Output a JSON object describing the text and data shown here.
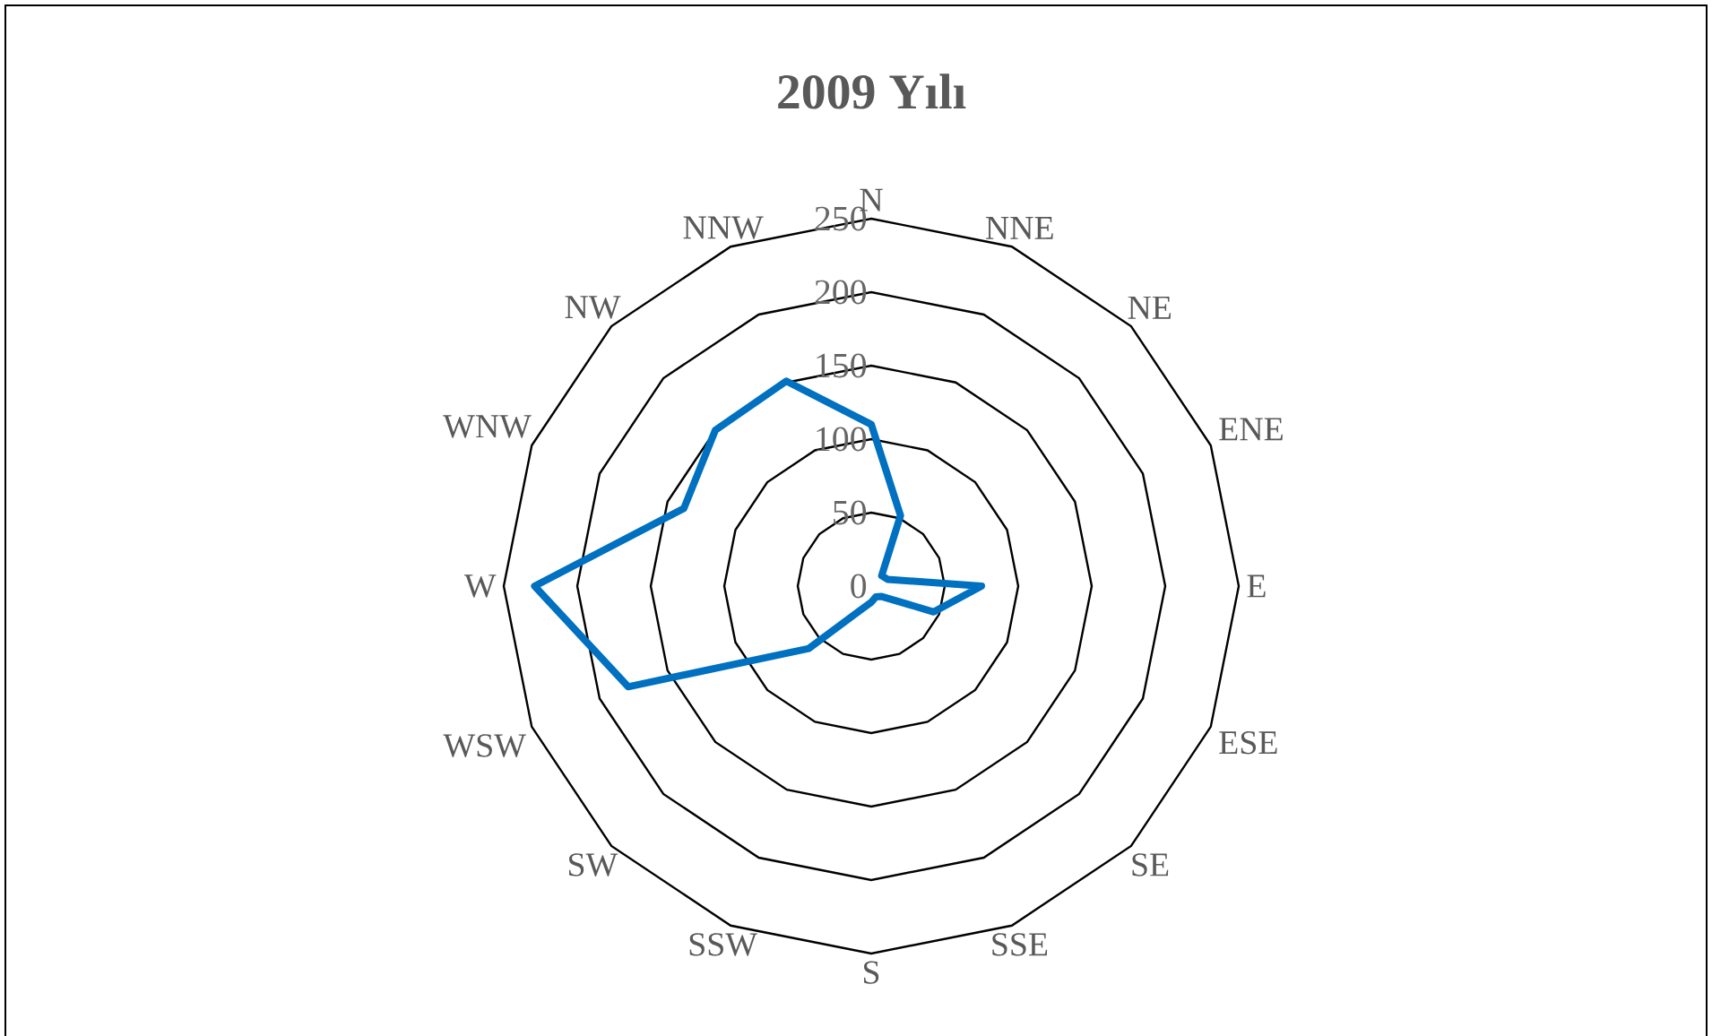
{
  "chart_data": {
    "type": "radar",
    "title": "2009 Yılı",
    "categories": [
      "N",
      "NNE",
      "NE",
      "ENE",
      "E",
      "ESE",
      "SE",
      "SSE",
      "S",
      "SSW",
      "SW",
      "WSW",
      "W",
      "WNW",
      "NW",
      "NNW"
    ],
    "series": [
      {
        "color": "#0070c0",
        "values": [
          110,
          52,
          10,
          12,
          75,
          46,
          10,
          8,
          11,
          17,
          60,
          179,
          229,
          138,
          150,
          151
        ]
      }
    ],
    "ylim": [
      0,
      250
    ],
    "yticks": [
      0,
      50,
      100,
      150,
      200,
      250
    ],
    "grid": true
  }
}
